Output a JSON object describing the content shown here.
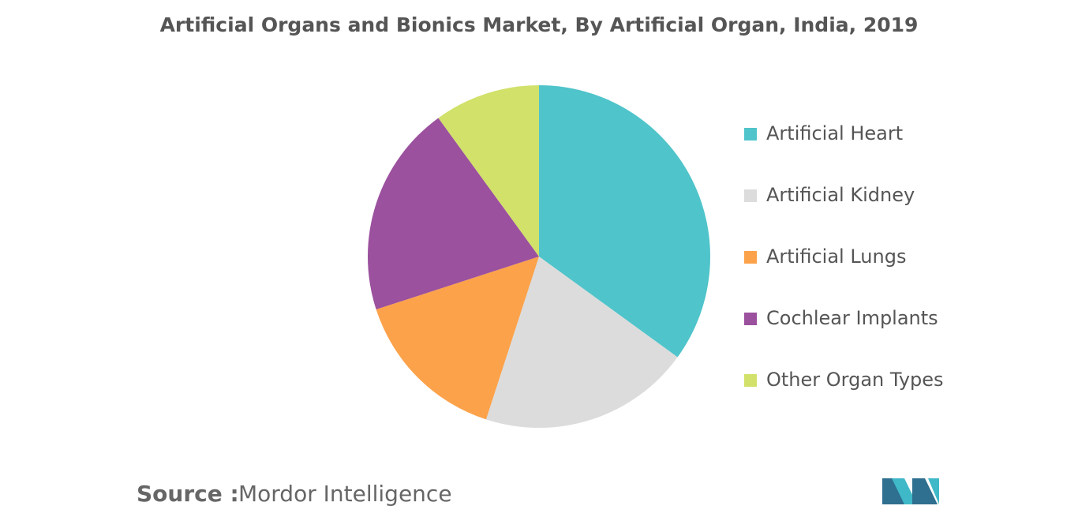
{
  "chart_data": {
    "type": "pie",
    "title": "Artificial Organs and Bionics Market, By Artificial Organ, India, 2019",
    "categories": [
      "Artificial Heart",
      "Artificial Kidney",
      "Artificial Lungs",
      "Cochlear Implants",
      "Other Organ Types"
    ],
    "values": [
      35,
      20,
      15,
      20,
      10
    ],
    "colors": [
      "#4fc4ca",
      "#dcdcdc",
      "#fba24b",
      "#9b519e",
      "#d1e16a"
    ],
    "legend": "right",
    "source_label": "Source :",
    "source": "Mordor Intelligence"
  }
}
